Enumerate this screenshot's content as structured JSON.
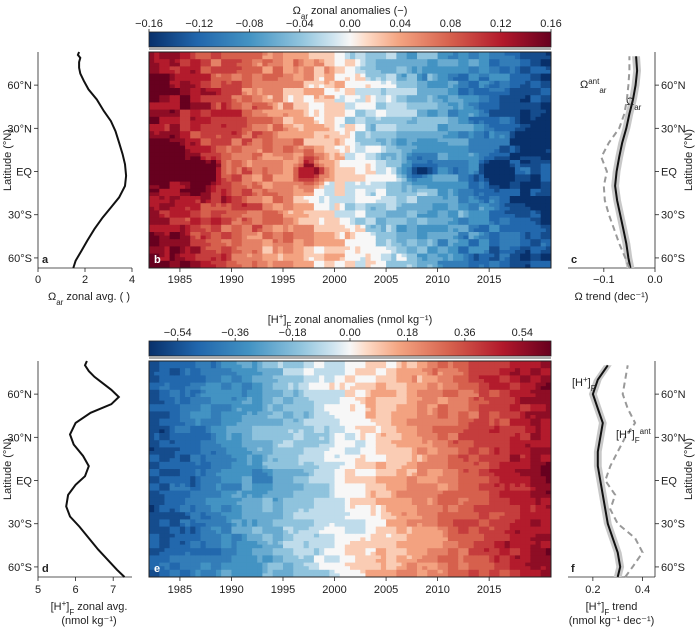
{
  "chart_data": [
    {
      "id": "a",
      "panel_label": "a",
      "type": "line",
      "xlabel_main": "Ω",
      "xlabel_sub": "ar",
      "xlabel_rest": " zonal avg. ( )",
      "ylabel": "Latitude (°N)",
      "xlim": [
        0,
        4
      ],
      "ylim": [
        -67,
        83
      ],
      "xticks": [
        "0",
        "2",
        "4"
      ],
      "yticks": [
        "60°N",
        "30°N",
        "EQ",
        "30°S",
        "60°S"
      ],
      "ytick_values": [
        60,
        30,
        0,
        -30,
        -60
      ],
      "lat": [
        -67,
        -62,
        -55,
        -48,
        -40,
        -32,
        -25,
        -18,
        -10,
        -3,
        5,
        12,
        20,
        28,
        35,
        42,
        50,
        57,
        63,
        68,
        72,
        76,
        79,
        81,
        83
      ],
      "value": [
        1.5,
        1.6,
        1.85,
        2.1,
        2.4,
        2.75,
        3.1,
        3.45,
        3.7,
        3.75,
        3.7,
        3.6,
        3.45,
        3.3,
        3.1,
        2.8,
        2.5,
        2.15,
        1.95,
        1.8,
        1.75,
        1.75,
        1.8,
        1.7,
        1.75
      ]
    },
    {
      "id": "b",
      "panel_label": "b",
      "type": "heatmap",
      "cbar_title_main": "Ω",
      "cbar_title_sub": "ar",
      "cbar_title_rest": " zonal anomalies (−)",
      "cbar_ticks": [
        "−0.16",
        "−0.12",
        "−0.08",
        "−0.04",
        "0.00",
        "0.04",
        "0.08",
        "0.12",
        "0.16"
      ],
      "cbar_range": [
        -0.16,
        0.16
      ],
      "xlim": [
        1982,
        2021
      ],
      "ylim": [
        -67,
        83
      ],
      "xticks": [
        "1985",
        "1990",
        "1995",
        "2000",
        "2005",
        "2010",
        "2015"
      ],
      "xtick_values": [
        1985,
        1990,
        1995,
        2000,
        2005,
        2010,
        2015
      ],
      "trend_per_year": -0.0078,
      "center_year": 2001.5,
      "hotspots": [
        {
          "year": 1987,
          "lat": 0,
          "value": 0.14
        },
        {
          "year": 1997.5,
          "lat": 0,
          "value": 0.12
        },
        {
          "year": 2016,
          "lat": 0,
          "value": -0.14
        },
        {
          "year": 2019,
          "lat": 20,
          "value": -0.13
        },
        {
          "year": 2008,
          "lat": 0,
          "value": -0.1
        },
        {
          "year": 1984,
          "lat": 10,
          "value": 0.13
        }
      ]
    },
    {
      "id": "c",
      "panel_label": "c",
      "type": "line",
      "xlabel": "Ω trend (dec⁻¹)",
      "ylabel": "Latitude (°N)",
      "xlim": [
        -0.17,
        0.0
      ],
      "ylim": [
        -67,
        83
      ],
      "xticks": [
        "−0.1",
        "0.0"
      ],
      "xtick_values": [
        -0.1,
        0.0
      ],
      "yticks": [
        "60°N",
        "30°N",
        "EQ",
        "30°S",
        "60°S"
      ],
      "ytick_values": [
        60,
        30,
        0,
        -30,
        -60
      ],
      "series": [
        {
          "name": "Ω_ar",
          "label_main": "Ω",
          "label_sub": "ar",
          "style": "solid",
          "lat": [
            -67,
            -60,
            -50,
            -40,
            -30,
            -20,
            -10,
            0,
            10,
            20,
            30,
            40,
            50,
            60,
            70,
            80
          ],
          "value": [
            -0.048,
            -0.052,
            -0.056,
            -0.062,
            -0.068,
            -0.074,
            -0.078,
            -0.075,
            -0.07,
            -0.064,
            -0.056,
            -0.05,
            -0.043,
            -0.038,
            -0.035,
            -0.037
          ]
        },
        {
          "name": "Ω_ar^ant",
          "label_main": "Ω",
          "label_sub": "ar",
          "label_sup": "ant",
          "style": "dashed",
          "lat": [
            -67,
            -60,
            -50,
            -40,
            -30,
            -20,
            -10,
            0,
            10,
            20,
            30,
            40,
            50,
            60,
            70,
            80
          ],
          "value": [
            -0.05,
            -0.058,
            -0.07,
            -0.08,
            -0.09,
            -0.098,
            -0.1,
            -0.094,
            -0.105,
            -0.09,
            -0.07,
            -0.06,
            -0.055,
            -0.052,
            -0.05,
            -0.05
          ]
        }
      ]
    },
    {
      "id": "d",
      "panel_label": "d",
      "type": "line",
      "xlabel_main": "[H",
      "xlabel_sup": "+",
      "xlabel_mid": "]",
      "xlabel_sub": "F",
      "xlabel_rest": " zonal avg.",
      "xlabel_line2": "(nmol kg⁻¹)",
      "ylabel": "Latitude (°N)",
      "xlim": [
        5,
        7.5
      ],
      "ylim": [
        -67,
        83
      ],
      "xticks": [
        "5",
        "6",
        "7"
      ],
      "xtick_values": [
        5,
        6,
        7
      ],
      "yticks": [
        "60°N",
        "30°N",
        "EQ",
        "30°S",
        "60°S"
      ],
      "ytick_values": [
        60,
        30,
        0,
        -30,
        -60
      ],
      "lat": [
        -67,
        -62,
        -55,
        -48,
        -40,
        -32,
        -25,
        -18,
        -10,
        -3,
        3,
        10,
        17,
        25,
        32,
        40,
        47,
        53,
        58,
        63,
        68,
        72,
        76,
        80,
        83
      ],
      "value": [
        7.3,
        7.1,
        6.85,
        6.6,
        6.35,
        6.1,
        5.85,
        5.75,
        5.8,
        6.0,
        6.25,
        6.35,
        6.2,
        5.95,
        5.85,
        6.0,
        6.4,
        6.95,
        7.15,
        6.95,
        6.7,
        6.5,
        6.35,
        6.25,
        6.3
      ]
    },
    {
      "id": "e",
      "panel_label": "e",
      "type": "heatmap",
      "cbar_title_main": "[H",
      "cbar_title_sup": "+",
      "cbar_title_mid": "]",
      "cbar_title_sub": "F",
      "cbar_title_rest": " zonal anomalies (nmol kg⁻¹)",
      "cbar_ticks": [
        "−0.54",
        "−0.36",
        "−0.18",
        "0.00",
        "0.18",
        "0.36",
        "0.54"
      ],
      "cbar_range": [
        -0.63,
        0.63
      ],
      "xlim": [
        1982,
        2021
      ],
      "ylim": [
        -67,
        83
      ],
      "xticks": [
        "1985",
        "1990",
        "1995",
        "2000",
        "2005",
        "2010",
        "2015"
      ],
      "xtick_values": [
        1985,
        1990,
        1995,
        2000,
        2005,
        2010,
        2015
      ],
      "trend_per_year": 0.028,
      "center_year": 2001.5,
      "hotspots": [
        {
          "year": 1986,
          "lat": 0,
          "value": -0.1
        },
        {
          "year": 1993,
          "lat": 0,
          "value": -0.08
        },
        {
          "year": 1997,
          "lat": 0,
          "value": -0.07
        }
      ]
    },
    {
      "id": "f",
      "panel_label": "f",
      "type": "line",
      "xlabel_main": "[H",
      "xlabel_sup": "+",
      "xlabel_mid": "]",
      "xlabel_sub": "F",
      "xlabel_rest": " trend",
      "xlabel_line2": "(nmol kg⁻¹ dec⁻¹)",
      "ylabel": "Latitude (°N)",
      "xlim": [
        0.1,
        0.45
      ],
      "ylim": [
        -67,
        83
      ],
      "xticks": [
        "0.2",
        "0.4"
      ],
      "xtick_values": [
        0.2,
        0.4
      ],
      "yticks": [
        "60°N",
        "30°N",
        "EQ",
        "30°S",
        "60°S"
      ],
      "ytick_values": [
        60,
        30,
        0,
        -30,
        -60
      ],
      "series": [
        {
          "name": "[H+]_F",
          "label_main": "[H",
          "label_sup": "+",
          "label_mid": "]",
          "label_sub": "F",
          "style": "solid",
          "lat": [
            -67,
            -60,
            -50,
            -40,
            -30,
            -20,
            -10,
            0,
            10,
            20,
            30,
            40,
            50,
            60,
            70,
            80
          ],
          "value": [
            0.3,
            0.31,
            0.3,
            0.28,
            0.26,
            0.25,
            0.24,
            0.23,
            0.22,
            0.22,
            0.23,
            0.24,
            0.22,
            0.2,
            0.22,
            0.26
          ]
        },
        {
          "name": "[H+]_F^ant",
          "label_main": "[H",
          "label_sup": "+",
          "label_mid": "]",
          "label_sub": "F",
          "label_sup2": "ant",
          "style": "dashed",
          "lat": [
            -67,
            -60,
            -50,
            -40,
            -30,
            -20,
            -10,
            0,
            10,
            20,
            30,
            40,
            50,
            60,
            70,
            80
          ],
          "value": [
            0.33,
            0.36,
            0.4,
            0.37,
            0.3,
            0.27,
            0.29,
            0.25,
            0.27,
            0.3,
            0.33,
            0.37,
            0.34,
            0.32,
            0.33,
            0.34
          ]
        }
      ]
    }
  ]
}
